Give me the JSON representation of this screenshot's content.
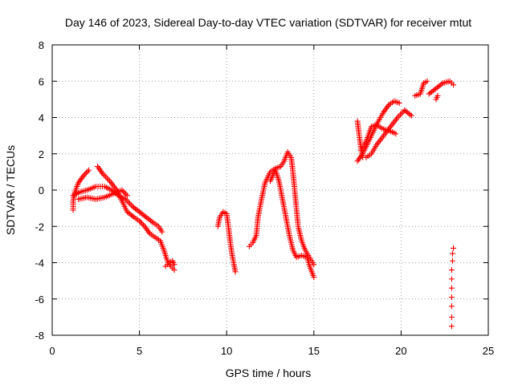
{
  "chart_data": {
    "type": "scatter",
    "marker": "+",
    "title": "Day 146 of 2023, Sidereal Day-to-day VTEC variation (SDTVAR) for receiver mtut",
    "xlabel": "GPS time / hours",
    "ylabel": "SDTVAR / TECUs",
    "xlim": [
      0,
      25
    ],
    "ylim": [
      -8,
      8
    ],
    "xticks": [
      0,
      5,
      10,
      15,
      20,
      25
    ],
    "yticks": [
      -8,
      -6,
      -4,
      -2,
      0,
      2,
      4,
      6,
      8
    ],
    "grid": true,
    "series_color": "#ff0000",
    "segments": [
      {
        "name": "seg1a",
        "points": [
          [
            1.2,
            -1.1
          ],
          [
            1.2,
            -0.6
          ],
          [
            1.3,
            -0.1
          ],
          [
            1.5,
            0.4
          ],
          [
            1.8,
            0.8
          ],
          [
            2.1,
            1.1
          ]
        ]
      },
      {
        "name": "seg1b",
        "points": [
          [
            1.2,
            -0.3
          ],
          [
            1.6,
            -0.1
          ],
          [
            2.0,
            0.0
          ],
          [
            2.5,
            0.2
          ],
          [
            3.0,
            0.2
          ],
          [
            3.4,
            0.0
          ],
          [
            3.8,
            -0.3
          ],
          [
            4.2,
            -0.5
          ],
          [
            4.6,
            -0.9
          ],
          [
            5.0,
            -1.2
          ],
          [
            5.4,
            -1.5
          ],
          [
            5.8,
            -1.8
          ],
          [
            6.1,
            -2.0
          ],
          [
            6.3,
            -2.3
          ]
        ]
      },
      {
        "name": "seg1c",
        "points": [
          [
            2.6,
            1.3
          ],
          [
            2.9,
            0.9
          ],
          [
            3.3,
            0.5
          ],
          [
            3.7,
            0.0
          ],
          [
            4.0,
            -0.6
          ],
          [
            4.3,
            -1.2
          ],
          [
            4.7,
            -1.5
          ],
          [
            5.0,
            -1.7
          ],
          [
            5.3,
            -2.0
          ],
          [
            5.6,
            -2.4
          ],
          [
            5.9,
            -2.6
          ],
          [
            6.2,
            -2.8
          ],
          [
            6.4,
            -3.3
          ],
          [
            6.6,
            -3.9
          ],
          [
            6.8,
            -4.2
          ],
          [
            7.0,
            -4.4
          ]
        ]
      },
      {
        "name": "seg1d",
        "points": [
          [
            1.5,
            -0.5
          ],
          [
            2.0,
            -0.4
          ],
          [
            2.5,
            -0.5
          ],
          [
            3.0,
            -0.4
          ],
          [
            3.5,
            -0.2
          ],
          [
            4.0,
            0.0
          ],
          [
            4.3,
            -0.3
          ]
        ]
      },
      {
        "name": "seg1e",
        "points": [
          [
            6.5,
            -4.2
          ],
          [
            6.7,
            -4.0
          ],
          [
            6.9,
            -3.9
          ],
          [
            7.0,
            -4.1
          ]
        ]
      },
      {
        "name": "seg2",
        "points": [
          [
            9.5,
            -2.0
          ],
          [
            9.6,
            -1.5
          ],
          [
            9.8,
            -1.2
          ],
          [
            10.0,
            -1.3
          ],
          [
            10.1,
            -2.0
          ],
          [
            10.2,
            -2.8
          ],
          [
            10.3,
            -3.5
          ],
          [
            10.4,
            -4.0
          ],
          [
            10.5,
            -4.5
          ]
        ]
      },
      {
        "name": "seg3a",
        "points": [
          [
            11.3,
            -3.1
          ],
          [
            11.5,
            -2.9
          ],
          [
            11.7,
            -2.5
          ],
          [
            11.8,
            -1.5
          ],
          [
            12.0,
            -0.5
          ],
          [
            12.2,
            0.4
          ],
          [
            12.5,
            1.0
          ],
          [
            12.8,
            1.2
          ],
          [
            13.1,
            1.3
          ],
          [
            13.3,
            1.6
          ],
          [
            13.5,
            2.1
          ],
          [
            13.7,
            1.8
          ],
          [
            13.8,
            1.0
          ],
          [
            13.9,
            0.0
          ],
          [
            14.0,
            -1.0
          ],
          [
            14.1,
            -2.0
          ],
          [
            14.3,
            -2.8
          ],
          [
            14.5,
            -3.3
          ],
          [
            14.8,
            -3.8
          ],
          [
            15.0,
            -4.1
          ]
        ]
      },
      {
        "name": "seg3b",
        "points": [
          [
            12.5,
            0.5
          ],
          [
            12.8,
            1.1
          ],
          [
            13.0,
            0.5
          ],
          [
            13.2,
            -0.5
          ],
          [
            13.4,
            -1.5
          ],
          [
            13.6,
            -2.5
          ],
          [
            13.8,
            -3.3
          ],
          [
            14.0,
            -3.7
          ],
          [
            14.3,
            -3.6
          ],
          [
            14.6,
            -3.7
          ],
          [
            14.8,
            -4.3
          ],
          [
            15.0,
            -4.8
          ]
        ]
      },
      {
        "name": "seg4a",
        "points": [
          [
            17.5,
            3.8
          ],
          [
            17.6,
            3.0
          ],
          [
            17.7,
            2.3
          ],
          [
            17.8,
            1.8
          ],
          [
            18.0,
            1.8
          ],
          [
            18.3,
            2.0
          ],
          [
            18.6,
            2.5
          ],
          [
            19.0,
            3.0
          ],
          [
            19.4,
            3.5
          ],
          [
            19.8,
            4.0
          ],
          [
            20.2,
            4.4
          ],
          [
            20.6,
            4.1
          ]
        ]
      },
      {
        "name": "seg4b",
        "points": [
          [
            17.5,
            1.6
          ],
          [
            17.8,
            2.0
          ],
          [
            18.1,
            2.6
          ],
          [
            18.4,
            3.2
          ],
          [
            18.7,
            3.8
          ],
          [
            19.0,
            4.3
          ],
          [
            19.3,
            4.7
          ],
          [
            19.6,
            4.9
          ],
          [
            19.9,
            4.8
          ]
        ]
      },
      {
        "name": "seg4c",
        "points": [
          [
            17.7,
            2.2
          ],
          [
            18.0,
            2.7
          ],
          [
            18.3,
            3.5
          ],
          [
            18.6,
            3.6
          ],
          [
            18.9,
            3.4
          ],
          [
            19.2,
            3.3
          ],
          [
            19.5,
            3.2
          ],
          [
            19.7,
            3.1
          ]
        ]
      },
      {
        "name": "seg4d",
        "points": [
          [
            20.8,
            5.2
          ],
          [
            21.1,
            5.3
          ],
          [
            21.3,
            5.9
          ],
          [
            21.5,
            6.0
          ]
        ]
      },
      {
        "name": "seg4e",
        "points": [
          [
            21.6,
            5.3
          ],
          [
            22.0,
            5.6
          ],
          [
            22.4,
            5.9
          ],
          [
            22.8,
            6.0
          ],
          [
            23.0,
            5.8
          ]
        ]
      },
      {
        "name": "seg4f",
        "points": [
          [
            22.0,
            5.0
          ],
          [
            22.1,
            5.2
          ]
        ]
      },
      {
        "name": "seg5",
        "points": [
          [
            22.9,
            -7.5
          ],
          [
            22.9,
            -7.0
          ],
          [
            22.9,
            -6.4
          ],
          [
            22.9,
            -5.9
          ],
          [
            22.9,
            -5.4
          ],
          [
            22.9,
            -4.9
          ],
          [
            22.9,
            -4.4
          ],
          [
            22.95,
            -3.9
          ],
          [
            22.95,
            -3.5
          ],
          [
            23.0,
            -3.2
          ]
        ]
      }
    ]
  }
}
